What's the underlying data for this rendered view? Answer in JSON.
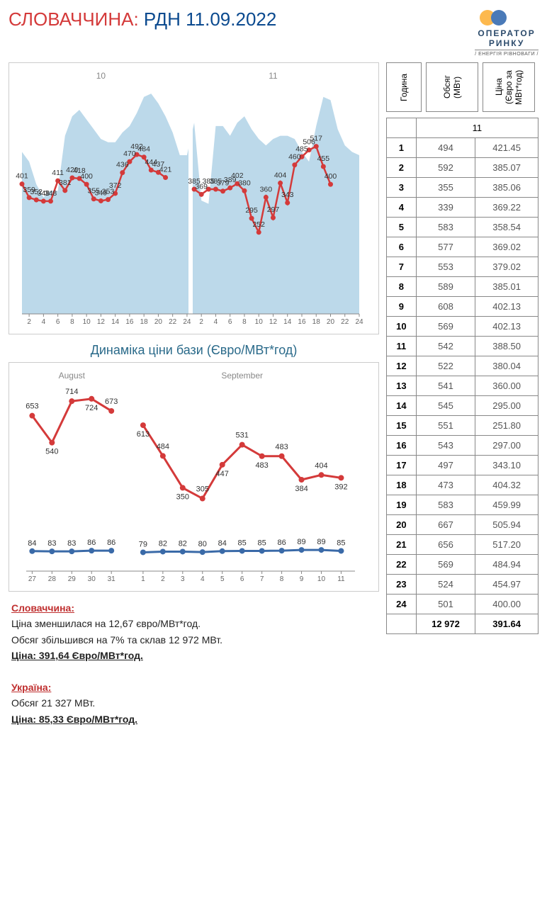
{
  "header": {
    "country": "СЛОВАЧЧИНА:",
    "rest": "РДН  11.09.2022",
    "logo_line1": "ОПЕРАТОР",
    "logo_line2": "РИНКУ",
    "logo_sub": "/ ЕНЕРГІЯ РІВНОВАГИ /"
  },
  "chart1": {
    "type": "line+area",
    "day_labels": [
      "10",
      "11"
    ],
    "x_ticks": [
      "2",
      "4",
      "6",
      "8",
      "10",
      "12",
      "14",
      "16",
      "18",
      "20",
      "22",
      "24",
      "2",
      "4",
      "6",
      "8",
      "10",
      "12",
      "14",
      "16",
      "18",
      "20",
      "22",
      "24"
    ],
    "line_values": [
      401,
      359,
      352,
      348,
      348,
      411,
      381,
      420,
      418,
      400,
      355,
      349,
      353,
      372,
      436,
      470,
      492,
      484,
      444,
      437,
      421,
      385,
      369,
      385,
      385,
      379,
      389,
      402,
      380,
      295,
      252,
      360,
      297,
      404,
      343,
      460,
      485,
      506,
      517,
      455,
      400
    ],
    "line_x_positions": [
      0,
      1,
      2,
      3,
      4,
      5,
      6,
      7,
      8,
      9,
      10,
      11,
      12,
      13,
      14,
      15,
      16,
      17,
      18,
      19,
      20,
      24,
      25,
      26,
      27,
      28,
      29,
      30,
      31,
      32,
      33,
      34,
      35,
      36,
      37,
      38,
      39,
      40,
      41,
      42,
      43
    ],
    "data_labels": [
      {
        "x": 0,
        "y": 401,
        "v": "401"
      },
      {
        "x": 1,
        "y": 359,
        "v": "359"
      },
      {
        "x": 2,
        "y": 352,
        "v": "352"
      },
      {
        "x": 3,
        "y": 348,
        "v": "348"
      },
      {
        "x": 4,
        "y": 348,
        "v": "348"
      },
      {
        "x": 5,
        "y": 411,
        "v": "411"
      },
      {
        "x": 6,
        "y": 381,
        "v": "381"
      },
      {
        "x": 7,
        "y": 420,
        "v": "420"
      },
      {
        "x": 8,
        "y": 418,
        "v": "418"
      },
      {
        "x": 9,
        "y": 400,
        "v": "400"
      },
      {
        "x": 10,
        "y": 355,
        "v": "355"
      },
      {
        "x": 11,
        "y": 349,
        "v": "349"
      },
      {
        "x": 12,
        "y": 353,
        "v": "353"
      },
      {
        "x": 13,
        "y": 372,
        "v": "372"
      },
      {
        "x": 14,
        "y": 436,
        "v": "436"
      },
      {
        "x": 15,
        "y": 470,
        "v": "470"
      },
      {
        "x": 16,
        "y": 492,
        "v": "492"
      },
      {
        "x": 17,
        "y": 484,
        "v": "484"
      },
      {
        "x": 18,
        "y": 444,
        "v": "444"
      },
      {
        "x": 19,
        "y": 437,
        "v": "437"
      },
      {
        "x": 20,
        "y": 421,
        "v": "421"
      },
      {
        "x": 24,
        "y": 385,
        "v": "385"
      },
      {
        "x": 25,
        "y": 369,
        "v": "369"
      },
      {
        "x": 26,
        "y": 385,
        "v": "385"
      },
      {
        "x": 27,
        "y": 385,
        "v": "385"
      },
      {
        "x": 28,
        "y": 379,
        "v": "379"
      },
      {
        "x": 29,
        "y": 389,
        "v": "389"
      },
      {
        "x": 30,
        "y": 402,
        "v": "402"
      },
      {
        "x": 31,
        "y": 380,
        "v": "380"
      },
      {
        "x": 32,
        "y": 295,
        "v": "295"
      },
      {
        "x": 33,
        "y": 252,
        "v": "252"
      },
      {
        "x": 34,
        "y": 360,
        "v": "360"
      },
      {
        "x": 35,
        "y": 297,
        "v": "297"
      },
      {
        "x": 36,
        "y": 404,
        "v": "404"
      },
      {
        "x": 37,
        "y": 343,
        "v": "343"
      },
      {
        "x": 38,
        "y": 460,
        "v": "460"
      },
      {
        "x": 39,
        "y": 485,
        "v": "485"
      },
      {
        "x": 40,
        "y": 506,
        "v": "506"
      },
      {
        "x": 41,
        "y": 517,
        "v": "517"
      },
      {
        "x": 42,
        "y": 455,
        "v": "455"
      },
      {
        "x": 43,
        "y": 400,
        "v": "400"
      }
    ],
    "area_values": [
      500,
      470,
      400,
      360,
      380,
      380,
      550,
      610,
      630,
      600,
      570,
      540,
      530,
      530,
      560,
      580,
      620,
      670,
      680,
      650,
      610,
      560,
      490,
      490,
      590,
      350,
      340,
      580,
      580,
      550,
      590,
      610,
      570,
      540,
      520,
      540,
      550,
      550,
      540,
      500,
      470,
      580,
      670,
      660,
      570,
      520,
      500,
      490
    ],
    "ymin": 0,
    "ymax": 700,
    "line_color": "#d43a3a",
    "area_color": "#b5d5e8",
    "marker_radius": 3.5
  },
  "chart2": {
    "title": "Динаміка ціни бази (Євро/МВт*год)",
    "type": "line",
    "month_labels": [
      "August",
      "September"
    ],
    "x_ticks": [
      "27",
      "28",
      "29",
      "30",
      "31",
      "1",
      "2",
      "3",
      "4",
      "5",
      "6",
      "7",
      "8",
      "9",
      "10",
      "11"
    ],
    "red_values": [
      653,
      540,
      714,
      724,
      673,
      613,
      484,
      350,
      305,
      447,
      531,
      483,
      483,
      384,
      404,
      392
    ],
    "blue_values": [
      84,
      83,
      83,
      86,
      86,
      79,
      82,
      82,
      80,
      84,
      85,
      85,
      86,
      89,
      89,
      85
    ],
    "ymin": 0,
    "ymax": 780,
    "red_color": "#d43a3a",
    "blue_color": "#3a6aa8",
    "marker_radius": 4
  },
  "summary": {
    "country1_name": "Словаччина:",
    "c1_line1": "Ціна зменшилася на 12,67 євро/МВт*год.",
    "c1_line2": "Обсяг збільшився на 7% та склав 12 972 МВт.",
    "c1_line3": "Ціна: 391,64 Євро/МВт*год.",
    "country2_name": "Україна:",
    "c2_line1": "Обсяг 21 327 МВт.",
    "c2_line2": "Ціна:  85,33 Євро/МВт*год."
  },
  "table": {
    "h1": "Година",
    "h2": "Обсяг (МВт)",
    "h3": "Ціна (Євро за МВт*год)",
    "day": "11",
    "rows": [
      {
        "h": "1",
        "v": "494",
        "p": "421.45"
      },
      {
        "h": "2",
        "v": "592",
        "p": "385.07"
      },
      {
        "h": "3",
        "v": "355",
        "p": "385.06"
      },
      {
        "h": "4",
        "v": "339",
        "p": "369.22"
      },
      {
        "h": "5",
        "v": "583",
        "p": "358.54"
      },
      {
        "h": "6",
        "v": "577",
        "p": "369.02"
      },
      {
        "h": "7",
        "v": "553",
        "p": "379.02"
      },
      {
        "h": "8",
        "v": "589",
        "p": "385.01"
      },
      {
        "h": "9",
        "v": "608",
        "p": "402.13"
      },
      {
        "h": "10",
        "v": "569",
        "p": "402.13"
      },
      {
        "h": "11",
        "v": "542",
        "p": "388.50"
      },
      {
        "h": "12",
        "v": "522",
        "p": "380.04"
      },
      {
        "h": "13",
        "v": "541",
        "p": "360.00"
      },
      {
        "h": "14",
        "v": "545",
        "p": "295.00"
      },
      {
        "h": "15",
        "v": "551",
        "p": "251.80"
      },
      {
        "h": "16",
        "v": "543",
        "p": "297.00"
      },
      {
        "h": "17",
        "v": "497",
        "p": "343.10"
      },
      {
        "h": "18",
        "v": "473",
        "p": "404.32"
      },
      {
        "h": "19",
        "v": "583",
        "p": "459.99"
      },
      {
        "h": "20",
        "v": "667",
        "p": "505.94"
      },
      {
        "h": "21",
        "v": "656",
        "p": "517.20"
      },
      {
        "h": "22",
        "v": "569",
        "p": "484.94"
      },
      {
        "h": "23",
        "v": "524",
        "p": "454.97"
      },
      {
        "h": "24",
        "v": "501",
        "p": "400.00"
      }
    ],
    "total_v": "12 972",
    "total_p": "391.64"
  }
}
